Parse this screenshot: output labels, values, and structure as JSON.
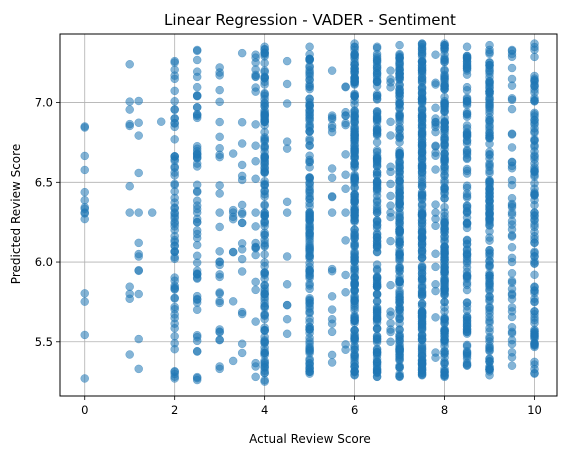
{
  "chart_data": {
    "type": "scatter",
    "title": "Linear Regression - VADER - Sentiment",
    "xlabel": "Actual Review Score",
    "ylabel": "Predicted Review Score",
    "xlim": [
      -0.55,
      10.5
    ],
    "ylim": [
      5.16,
      7.43
    ],
    "xticks": [
      0,
      2,
      4,
      6,
      8,
      10
    ],
    "yticks": [
      5.5,
      6.0,
      6.5,
      7.0
    ],
    "ytick_labels": [
      "5.5",
      "6.0",
      "6.5",
      "7.0"
    ],
    "grid": true,
    "marker_color": "#1f77b4",
    "marker_alpha": 0.55,
    "columns": [
      {
        "x": 0,
        "ymin": 5.27,
        "ymax": 6.85,
        "n": 14
      },
      {
        "x": 1,
        "ymin": 5.42,
        "ymax": 7.24,
        "n": 10
      },
      {
        "x": 1.2,
        "ymin": 5.33,
        "ymax": 7.01,
        "n": 12
      },
      {
        "x": 1.5,
        "ymin": 6.31,
        "ymax": 6.31,
        "n": 1
      },
      {
        "x": 1.7,
        "ymin": 6.88,
        "ymax": 6.88,
        "n": 1
      },
      {
        "x": 2,
        "ymin": 5.27,
        "ymax": 7.26,
        "n": 70
      },
      {
        "x": 2.5,
        "ymin": 5.26,
        "ymax": 7.33,
        "n": 60
      },
      {
        "x": 3,
        "ymin": 5.33,
        "ymax": 7.22,
        "n": 30
      },
      {
        "x": 3.3,
        "ymin": 5.38,
        "ymax": 6.68,
        "n": 8
      },
      {
        "x": 3.5,
        "ymin": 5.43,
        "ymax": 7.31,
        "n": 18
      },
      {
        "x": 3.8,
        "ymin": 5.28,
        "ymax": 7.3,
        "n": 25
      },
      {
        "x": 4,
        "ymin": 5.25,
        "ymax": 7.35,
        "n": 140
      },
      {
        "x": 4.5,
        "ymin": 5.55,
        "ymax": 7.26,
        "n": 12
      },
      {
        "x": 5,
        "ymin": 5.3,
        "ymax": 7.35,
        "n": 150
      },
      {
        "x": 5.5,
        "ymin": 5.37,
        "ymax": 7.2,
        "n": 20
      },
      {
        "x": 5.8,
        "ymin": 5.45,
        "ymax": 7.1,
        "n": 15
      },
      {
        "x": 6,
        "ymin": 5.29,
        "ymax": 7.37,
        "n": 220
      },
      {
        "x": 6.5,
        "ymin": 5.28,
        "ymax": 7.35,
        "n": 160
      },
      {
        "x": 6.8,
        "ymin": 5.5,
        "ymax": 7.2,
        "n": 20
      },
      {
        "x": 7,
        "ymin": 5.28,
        "ymax": 7.36,
        "n": 210
      },
      {
        "x": 7.5,
        "ymin": 5.29,
        "ymax": 7.37,
        "n": 230
      },
      {
        "x": 7.8,
        "ymin": 5.4,
        "ymax": 7.3,
        "n": 25
      },
      {
        "x": 8,
        "ymin": 5.28,
        "ymax": 7.37,
        "n": 200
      },
      {
        "x": 8.5,
        "ymin": 5.35,
        "ymax": 7.35,
        "n": 120
      },
      {
        "x": 9,
        "ymin": 5.29,
        "ymax": 7.36,
        "n": 160
      },
      {
        "x": 9.5,
        "ymin": 5.35,
        "ymax": 7.33,
        "n": 50
      },
      {
        "x": 10,
        "ymin": 5.3,
        "ymax": 7.37,
        "n": 110
      }
    ],
    "repeated_value": 6.31
  }
}
